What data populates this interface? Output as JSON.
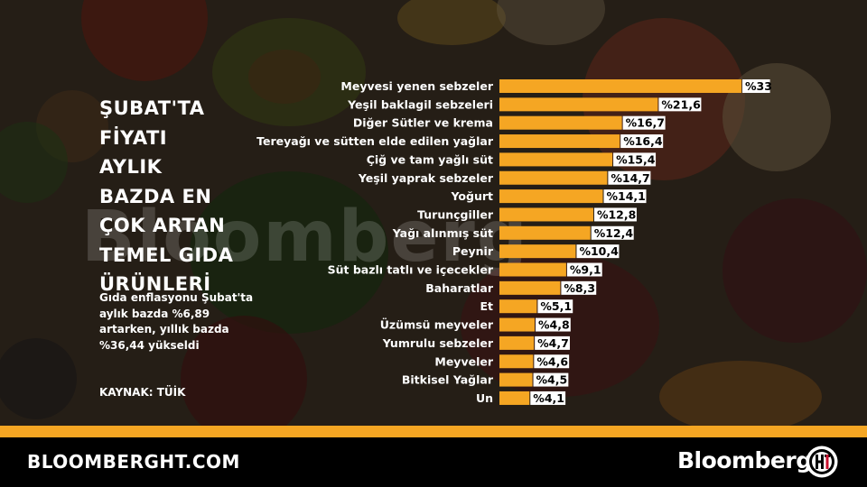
{
  "title": "ŞUBAT'TA\nFİYATI\nAYLIK\nBAZDA EN\nÇOK ARTAN\nTEMEL GIDA\nÜRÜNLERİ",
  "subtitle": "Gıda enflasyonu Şubat'ta aylık bazda %6,89 artarken, yıllık bazda %36,44 yükseldi",
  "source": "KAYNAK: TÜİK",
  "watermark": "Bloomberg",
  "footer": {
    "site": "BLOOMBERGHT.COM",
    "brand": "Bloomberg"
  },
  "colors": {
    "bar": "#f5a623",
    "accent": "#f5a623",
    "text": "#ffffff",
    "label_bg": "#ffffff"
  },
  "chart_data": {
    "type": "bar",
    "orientation": "horizontal",
    "value_prefix": "%",
    "categories": [
      "Meyvesi yenen sebzeler",
      "Yeşil baklagil sebzeleri",
      "Diğer Sütler ve krema",
      "Tereyağı ve sütten elde edilen yağlar",
      "Çiğ ve tam yağlı süt",
      "Yeşil yaprak sebzeler",
      "Yoğurt",
      "Turunçgiller",
      "Yağı alınmış süt",
      "Peynir",
      "Süt bazlı tatlı ve içecekler",
      "Baharatlar",
      "Et",
      "Üzümsü meyveler",
      "Yumrulu sebzeler",
      "Meyveler",
      "Bitkisel Yağlar",
      "Un"
    ],
    "values": [
      33,
      21.6,
      16.7,
      16.4,
      15.4,
      14.7,
      14.1,
      12.8,
      12.4,
      10.4,
      9.1,
      8.3,
      5.1,
      4.8,
      4.7,
      4.6,
      4.5,
      4.1
    ],
    "labels": [
      "%33",
      "%21,6",
      "%16,7",
      "%16,4",
      "%15,4",
      "%14,7",
      "%14,1",
      "%12,8",
      "%12,4",
      "%10,4",
      "%9,1",
      "%8,3",
      "%5,1",
      "%4,8",
      "%4,7",
      "%4,6",
      "%4,5",
      "%4,1"
    ],
    "xlim": [
      0,
      33
    ],
    "grid": false,
    "legend": "none"
  }
}
